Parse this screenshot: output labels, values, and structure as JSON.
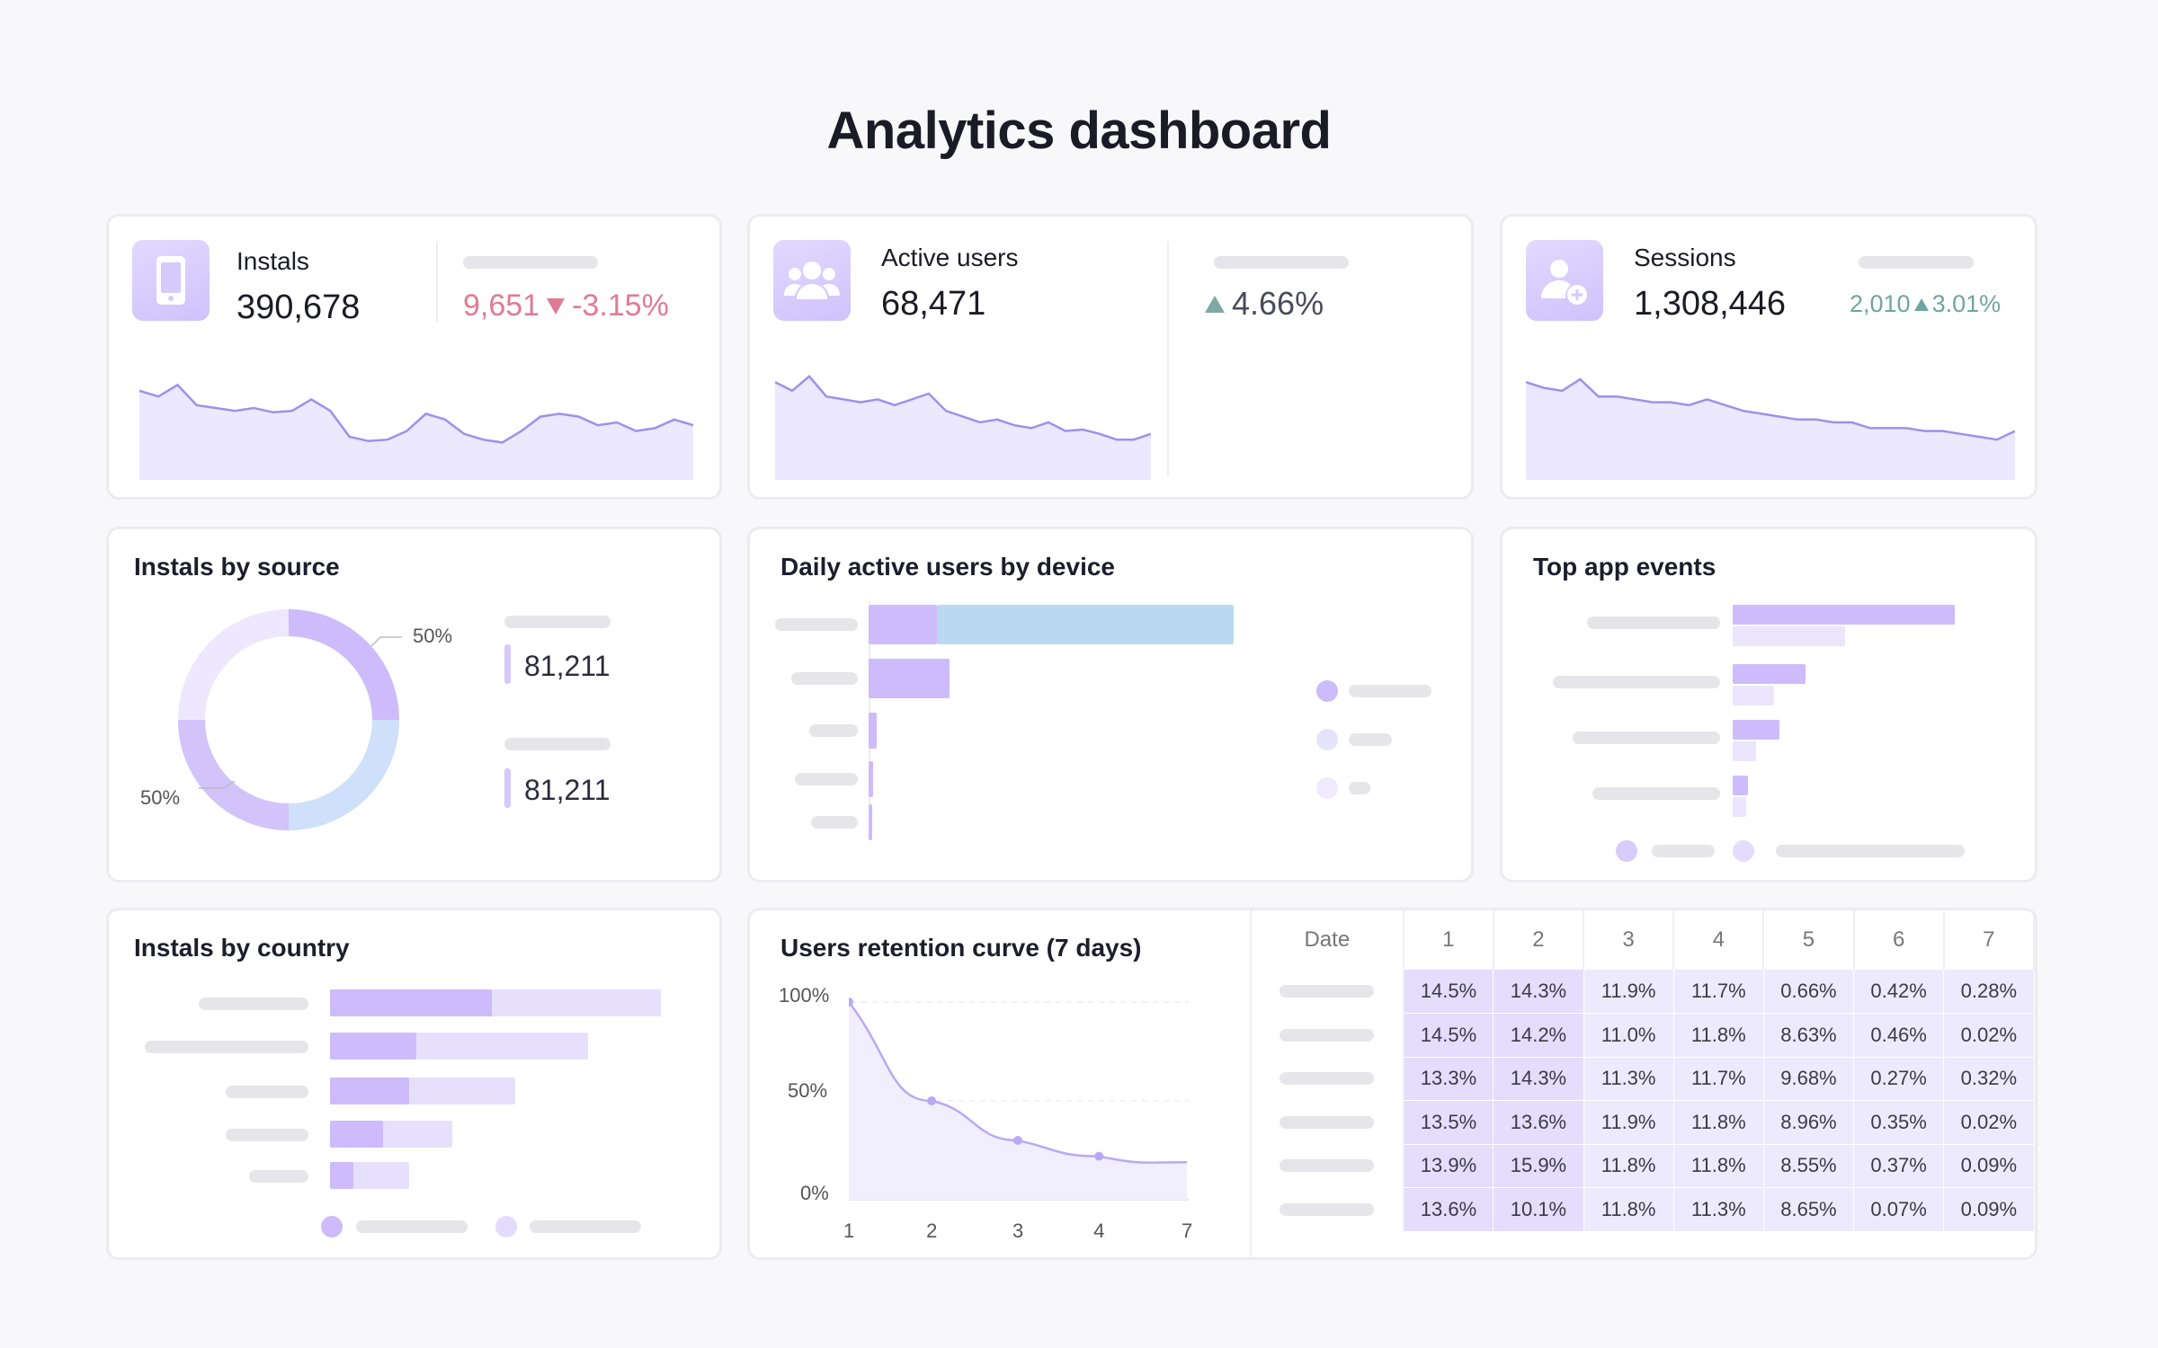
{
  "page_title": "Analytics dashboard",
  "kpis": {
    "installs": {
      "label": "Instals",
      "value": "390,678",
      "delta_abs": "9,651",
      "delta_pct": "-3.15%",
      "trend": "down",
      "icon": "phone-icon"
    },
    "active_users": {
      "label": "Active users",
      "value": "68,471",
      "delta_pct": "4.66%",
      "trend": "up",
      "icon": "users-icon"
    },
    "sessions": {
      "label": "Sessions",
      "value": "1,308,446",
      "delta_abs": "2,010",
      "delta_pct": "3.01%",
      "trend": "up",
      "icon": "user-add-icon"
    }
  },
  "sparklines": {
    "installs": [
      62,
      58,
      66,
      52,
      50,
      48,
      50,
      47,
      48,
      56,
      48,
      30,
      27,
      28,
      34,
      46,
      42,
      32,
      28,
      26,
      34,
      44,
      46,
      44,
      38,
      40,
      34,
      36,
      42,
      38
    ],
    "active_users": [
      68,
      62,
      72,
      58,
      56,
      54,
      56,
      52,
      56,
      60,
      48,
      44,
      40,
      42,
      38,
      36,
      40,
      34,
      35,
      32,
      28,
      28,
      32
    ],
    "sessions": [
      68,
      64,
      62,
      70,
      58,
      58,
      56,
      54,
      54,
      52,
      56,
      52,
      48,
      46,
      44,
      42,
      42,
      40,
      40,
      36,
      36,
      36,
      34,
      34,
      32,
      30,
      28,
      34
    ]
  },
  "colors": {
    "accent": "#c6b4fa",
    "accent_light": "#e8e2fe",
    "blue": "#bad9f1",
    "negative": "#e07b95",
    "positive": "#6fa5a0",
    "line": "#9f90ec",
    "fill": "#ece8fd"
  },
  "installs_by_source": {
    "title": "Instals by source",
    "label_top": "50%",
    "label_bottom": "50%",
    "values": [
      "81,211",
      "81,211"
    ],
    "slices": [
      50,
      50
    ]
  },
  "dau_by_device": {
    "title": "Daily active users by device",
    "rows": [
      {
        "primary": 0.16,
        "secondary": 0.7
      },
      {
        "primary": 0.19,
        "secondary": 0
      },
      {
        "primary": 0.02,
        "secondary": 0
      },
      {
        "primary": 0.01,
        "secondary": 0
      },
      {
        "primary": 0.002,
        "secondary": 0
      }
    ]
  },
  "top_app_events": {
    "title": "Top app events",
    "rows": [
      {
        "a": 0.85,
        "b": 0.43
      },
      {
        "a": 0.28,
        "b": 0.16
      },
      {
        "a": 0.18,
        "b": 0.09
      },
      {
        "a": 0.06,
        "b": 0.05
      }
    ]
  },
  "installs_by_country": {
    "title": "Instals by country",
    "rows": [
      {
        "a": 0.49,
        "total": 1.0
      },
      {
        "a": 0.26,
        "total": 0.78
      },
      {
        "a": 0.24,
        "total": 0.56
      },
      {
        "a": 0.16,
        "total": 0.37
      },
      {
        "a": 0.07,
        "total": 0.24
      }
    ]
  },
  "retention": {
    "title": "Users retention curve (7 days)",
    "y_ticks": [
      "100%",
      "50%",
      "0%"
    ],
    "x_ticks": [
      "1",
      "2",
      "3",
      "4",
      "7"
    ],
    "points": [
      100,
      50,
      30,
      22,
      19
    ],
    "table": {
      "header": [
        "Date",
        "1",
        "2",
        "3",
        "4",
        "5",
        "6",
        "7"
      ],
      "rows": [
        [
          "14.5%",
          "14.3%",
          "11.9%",
          "11.7%",
          "0.66%",
          "0.42%",
          "0.28%"
        ],
        [
          "14.5%",
          "14.2%",
          "11.0%",
          "11.8%",
          "8.63%",
          "0.46%",
          "0.02%"
        ],
        [
          "13.3%",
          "14.3%",
          "11.3%",
          "11.7%",
          "9.68%",
          "0.27%",
          "0.32%"
        ],
        [
          "13.5%",
          "13.6%",
          "11.9%",
          "11.8%",
          "8.96%",
          "0.35%",
          "0.02%"
        ],
        [
          "13.9%",
          "15.9%",
          "11.8%",
          "11.8%",
          "8.55%",
          "0.37%",
          "0.09%"
        ],
        [
          "13.6%",
          "10.1%",
          "11.8%",
          "11.3%",
          "8.65%",
          "0.07%",
          "0.09%"
        ]
      ]
    }
  }
}
